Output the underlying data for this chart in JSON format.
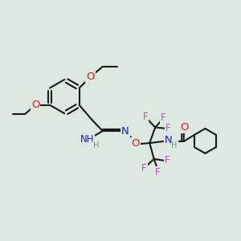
{
  "bg_color": "#dde8e0",
  "bond_color": "#1a1a1a",
  "bond_width": 1.5,
  "atom_colors": {
    "C": "#1a1a1a",
    "H": "#6a9a7a",
    "N": "#1a1add",
    "O": "#dd1a1a",
    "F": "#cc44cc"
  },
  "font_size": 8.5,
  "figsize": [
    3.0,
    3.0
  ],
  "dpi": 100,
  "xlim": [
    0,
    12
  ],
  "ylim": [
    0,
    12
  ]
}
